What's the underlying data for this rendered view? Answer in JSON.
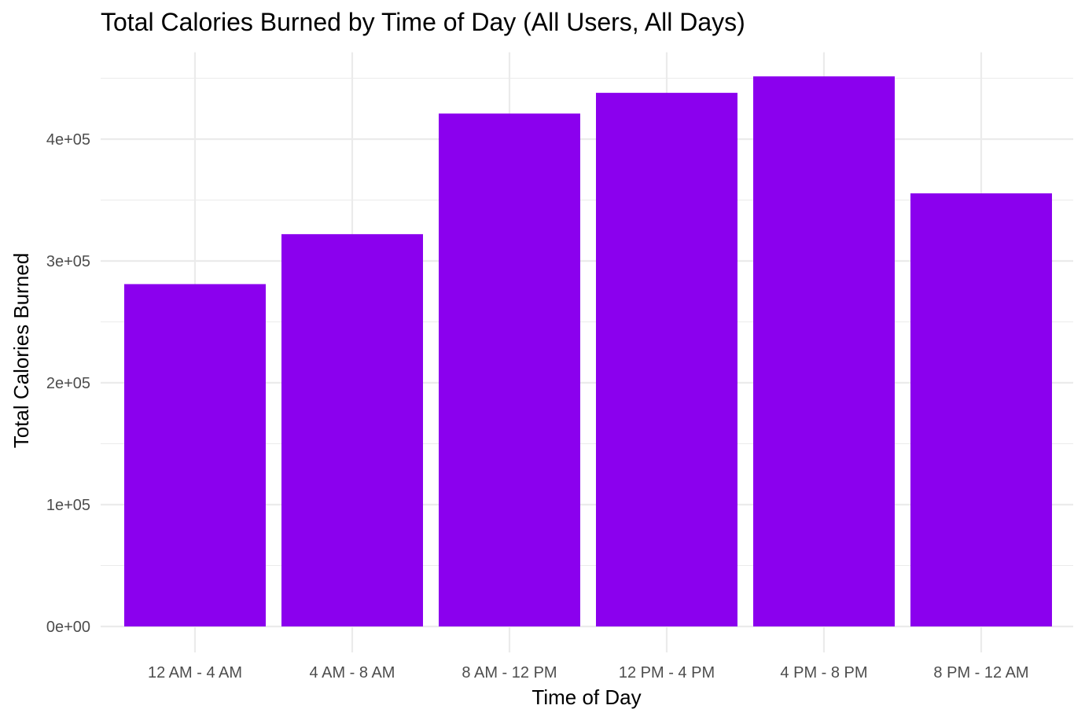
{
  "chart_data": {
    "type": "bar",
    "title": "Total Calories Burned by Time of Day (All Users, All Days)",
    "xlabel": "Time of Day",
    "ylabel": "Total Calories Burned",
    "categories": [
      "12 AM - 4 AM",
      "4 AM - 8 AM",
      "8 AM - 12 PM",
      "12 PM - 4 PM",
      "4 PM - 8 PM",
      "8 PM - 12 AM"
    ],
    "values": [
      281000,
      322000,
      421000,
      438000,
      451500,
      355500
    ],
    "ylim": [
      0,
      470000
    ],
    "y_ticks": [
      0,
      100000,
      200000,
      300000,
      400000
    ],
    "y_tick_labels": [
      "0e+00",
      "1e+05",
      "2e+05",
      "3e+05",
      "4e+05"
    ],
    "y_minor_ticks": [
      50000,
      150000,
      250000,
      350000,
      450000
    ],
    "bar_color": "#8b00ee",
    "grid": true,
    "legend": "none"
  }
}
